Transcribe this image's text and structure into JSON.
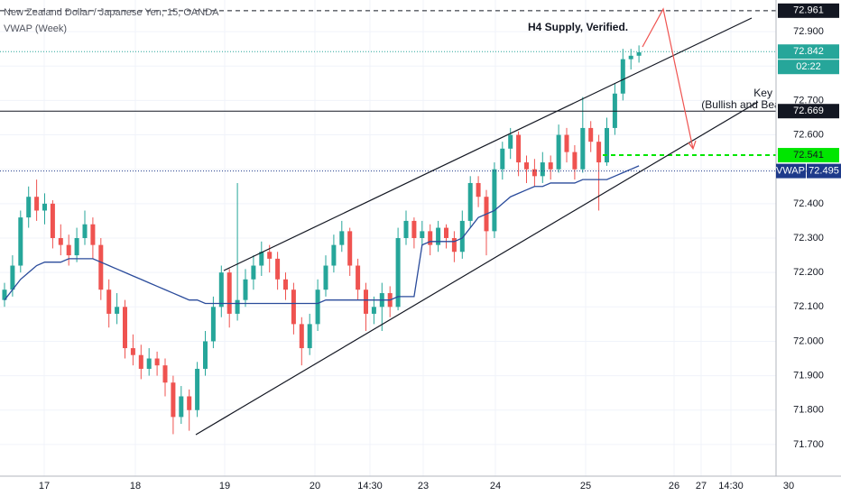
{
  "chart_data": {
    "type": "candlestick",
    "title": "New Zealand Dollar / Japanese Yen, 15, OANDA",
    "indicator": "VWAP (Week)",
    "annotations": [
      "H4 Supply, Verified.",
      "Key Level",
      "(Bullish and Bearish)"
    ],
    "up_color": "#26a69a",
    "down_color": "#ef5350",
    "vwap_color": "#2a4b9b",
    "grid": true,
    "ylim": [
      71.608,
      72.992
    ],
    "yticks": [
      {
        "value": 71.7,
        "label": "71.700"
      },
      {
        "value": 71.8,
        "label": "71.800"
      },
      {
        "value": 71.9,
        "label": "71.900"
      },
      {
        "value": 72.0,
        "label": "72.000"
      },
      {
        "value": 72.1,
        "label": "72.100"
      },
      {
        "value": 72.2,
        "label": "72.200"
      },
      {
        "value": 72.3,
        "label": "72.300"
      },
      {
        "value": 72.4,
        "label": "72.400"
      },
      {
        "value": 72.5,
        "label": "72.500"
      },
      {
        "value": 72.6,
        "label": "72.600"
      },
      {
        "value": 72.7,
        "label": "72.700"
      },
      {
        "value": 72.8,
        "label": "72.800"
      },
      {
        "value": 72.9,
        "label": "72.900"
      }
    ],
    "categories": [
      "17",
      "18",
      "19",
      "20",
      "14:30",
      "23",
      "24",
      "25",
      "26",
      "27",
      "14:30",
      "30"
    ],
    "candles": [
      [
        72.12,
        72.17,
        72.1,
        72.15
      ],
      [
        72.15,
        72.25,
        72.13,
        72.22
      ],
      [
        72.22,
        72.38,
        72.2,
        72.36
      ],
      [
        72.36,
        72.45,
        72.33,
        72.42
      ],
      [
        72.42,
        72.47,
        72.35,
        72.38
      ],
      [
        72.38,
        72.43,
        72.34,
        72.4
      ],
      [
        72.4,
        72.41,
        72.27,
        72.3
      ],
      [
        72.3,
        72.34,
        72.25,
        72.28
      ],
      [
        72.28,
        72.31,
        72.22,
        72.25
      ],
      [
        72.25,
        72.33,
        72.23,
        72.3
      ],
      [
        72.3,
        72.38,
        72.28,
        72.34
      ],
      [
        72.34,
        72.36,
        72.24,
        72.28
      ],
      [
        72.28,
        72.3,
        72.12,
        72.15
      ],
      [
        72.15,
        72.18,
        72.04,
        72.08
      ],
      [
        72.08,
        72.14,
        72.05,
        72.1
      ],
      [
        72.1,
        72.12,
        71.95,
        71.98
      ],
      [
        71.98,
        72.02,
        71.93,
        71.96
      ],
      [
        71.96,
        71.99,
        71.89,
        71.92
      ],
      [
        71.92,
        71.98,
        71.9,
        71.95
      ],
      [
        71.95,
        71.97,
        71.9,
        71.93
      ],
      [
        71.93,
        71.95,
        71.84,
        71.88
      ],
      [
        71.88,
        71.9,
        71.73,
        71.78
      ],
      [
        71.78,
        71.87,
        71.76,
        71.84
      ],
      [
        71.84,
        71.86,
        71.74,
        71.8
      ],
      [
        71.8,
        71.94,
        71.78,
        71.92
      ],
      [
        71.92,
        72.03,
        71.9,
        72.0
      ],
      [
        72.0,
        72.13,
        71.98,
        72.1
      ],
      [
        72.1,
        72.22,
        72.07,
        72.2
      ],
      [
        72.2,
        72.21,
        72.04,
        72.08
      ],
      [
        72.08,
        72.46,
        72.06,
        72.12
      ],
      [
        72.12,
        72.21,
        72.1,
        72.18
      ],
      [
        72.18,
        72.25,
        72.15,
        72.22
      ],
      [
        72.22,
        72.29,
        72.19,
        72.26
      ],
      [
        72.26,
        72.28,
        72.2,
        72.24
      ],
      [
        72.24,
        72.26,
        72.15,
        72.18
      ],
      [
        72.18,
        72.2,
        72.12,
        72.15
      ],
      [
        72.15,
        72.17,
        72.02,
        72.05
      ],
      [
        72.05,
        72.07,
        71.93,
        71.98
      ],
      [
        71.98,
        72.08,
        71.96,
        72.05
      ],
      [
        72.05,
        72.18,
        72.03,
        72.15
      ],
      [
        72.15,
        72.25,
        72.13,
        72.22
      ],
      [
        72.22,
        72.31,
        72.2,
        72.28
      ],
      [
        72.28,
        72.35,
        72.26,
        72.32
      ],
      [
        72.32,
        72.33,
        72.19,
        72.22
      ],
      [
        72.22,
        72.24,
        72.12,
        72.15
      ],
      [
        72.15,
        72.17,
        72.03,
        72.08
      ],
      [
        72.08,
        72.13,
        72.05,
        72.1
      ],
      [
        72.1,
        72.17,
        72.03,
        72.14
      ],
      [
        72.14,
        72.16,
        72.07,
        72.1
      ],
      [
        72.1,
        72.33,
        72.09,
        72.3
      ],
      [
        72.3,
        72.38,
        72.28,
        72.35
      ],
      [
        72.35,
        72.36,
        72.27,
        72.3
      ],
      [
        72.3,
        72.35,
        72.28,
        72.32
      ],
      [
        72.32,
        72.34,
        72.25,
        72.28
      ],
      [
        72.28,
        72.35,
        72.26,
        72.33
      ],
      [
        72.33,
        72.34,
        72.27,
        72.3
      ],
      [
        72.3,
        72.32,
        72.23,
        72.26
      ],
      [
        72.26,
        72.38,
        72.24,
        72.35
      ],
      [
        72.35,
        72.48,
        72.33,
        72.46
      ],
      [
        72.46,
        72.48,
        72.39,
        72.42
      ],
      [
        72.42,
        72.44,
        72.25,
        72.32
      ],
      [
        72.32,
        72.52,
        72.3,
        72.5
      ],
      [
        72.5,
        72.58,
        72.47,
        72.56
      ],
      [
        72.56,
        72.62,
        72.53,
        72.6
      ],
      [
        72.6,
        72.61,
        72.48,
        72.52
      ],
      [
        72.52,
        72.54,
        72.46,
        72.5
      ],
      [
        72.5,
        72.53,
        72.45,
        72.48
      ],
      [
        72.48,
        72.55,
        72.46,
        72.52
      ],
      [
        72.52,
        72.54,
        72.47,
        72.5
      ],
      [
        72.5,
        72.63,
        72.49,
        72.6
      ],
      [
        72.6,
        72.62,
        72.52,
        72.55
      ],
      [
        72.55,
        72.57,
        72.47,
        72.5
      ],
      [
        72.5,
        72.71,
        72.49,
        72.62
      ],
      [
        72.62,
        72.64,
        72.55,
        72.58
      ],
      [
        72.58,
        72.6,
        72.38,
        72.52
      ],
      [
        72.52,
        72.65,
        72.51,
        72.62
      ],
      [
        72.62,
        72.75,
        72.6,
        72.72
      ],
      [
        72.72,
        72.85,
        72.7,
        72.82
      ],
      [
        72.82,
        72.85,
        72.79,
        72.83
      ],
      [
        72.83,
        72.86,
        72.81,
        72.84
      ]
    ],
    "vwap": [
      72.12,
      72.15,
      72.18,
      72.2,
      72.22,
      72.23,
      72.23,
      72.23,
      72.24,
      72.24,
      72.24,
      72.24,
      72.23,
      72.22,
      72.21,
      72.2,
      72.19,
      72.18,
      72.17,
      72.16,
      72.15,
      72.14,
      72.13,
      72.12,
      72.12,
      72.11,
      72.11,
      72.11,
      72.11,
      72.11,
      72.11,
      72.11,
      72.11,
      72.11,
      72.11,
      72.11,
      72.11,
      72.11,
      72.11,
      72.11,
      72.12,
      72.12,
      72.12,
      72.12,
      72.12,
      72.12,
      72.12,
      72.12,
      72.12,
      72.13,
      72.13,
      72.13,
      72.28,
      72.29,
      72.29,
      72.29,
      72.29,
      72.3,
      72.33,
      72.36,
      72.37,
      72.38,
      72.4,
      72.42,
      72.43,
      72.44,
      72.45,
      72.45,
      72.46,
      72.46,
      72.46,
      72.46,
      72.47,
      72.47,
      72.47,
      72.47,
      72.48,
      72.49,
      72.5,
      72.51
    ],
    "levels": [
      {
        "value": 72.961,
        "color": "#131722",
        "text_color": "#ffffff",
        "style": "dashed"
      },
      {
        "value": 72.842,
        "color": "#26a69a",
        "text_color": "#ffffff",
        "style": "dotted",
        "countdown": "02:22"
      },
      {
        "value": 72.669,
        "color": "#131722",
        "text_color": "#ffffff",
        "style": "solid"
      },
      {
        "value": 72.541,
        "color": "#00e600",
        "text_color": "#131722",
        "style": "dashed"
      },
      {
        "value": 72.495,
        "color": "#1e3a8a",
        "text_color": "#ffffff",
        "style": "dotted",
        "tag": "VWAP"
      }
    ]
  }
}
